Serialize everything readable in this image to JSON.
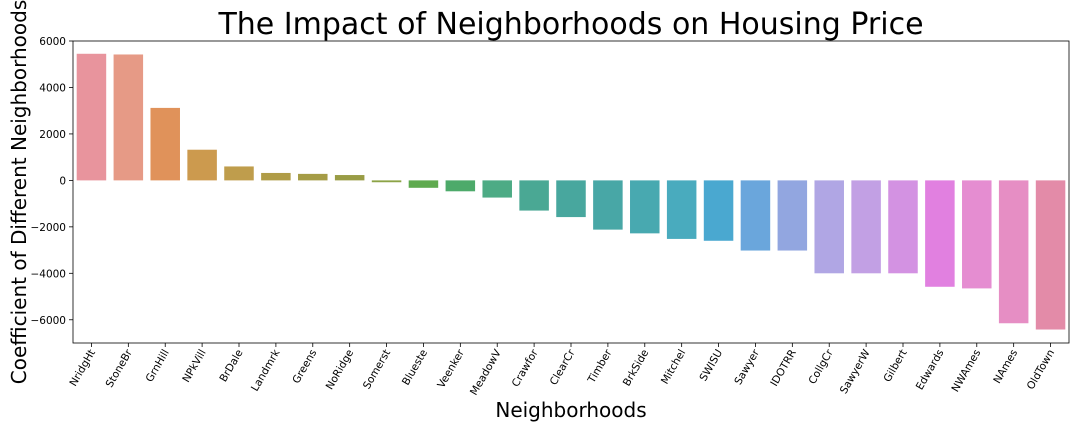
{
  "chart_data": {
    "type": "bar",
    "title": "The Impact of Neighborhoods on Housing Price",
    "xlabel": "Neighborhoods",
    "ylabel": "Coefficient of Different Neighborhoods",
    "ylim": [
      -7000,
      6000
    ],
    "yticks": [
      -6000,
      -4000,
      -2000,
      0,
      2000,
      4000,
      6000
    ],
    "ytick_labels": [
      "−6000",
      "−4000",
      "−2000",
      "0",
      "2000",
      "4000",
      "6000"
    ],
    "grid": false,
    "categories": [
      "NridgHt",
      "StoneBr",
      "GrnHill",
      "NPkVill",
      "BrDale",
      "Landmrk",
      "Greens",
      "NoRidge",
      "Somerst",
      "Blueste",
      "Veenker",
      "MeadowV",
      "Crawfor",
      "ClearCr",
      "Timber",
      "BrkSide",
      "Mitchel",
      "SWISU",
      "Sawyer",
      "IDOTRR",
      "CollgCr",
      "SawyerW",
      "Gilbert",
      "Edwards",
      "NWAmes",
      "NAmes",
      "OldTown"
    ],
    "values": [
      5450,
      5420,
      3120,
      1320,
      600,
      320,
      280,
      230,
      -80,
      -320,
      -470,
      -740,
      -1300,
      -1580,
      -2120,
      -2280,
      -2520,
      -2600,
      -3020,
      -3020,
      -4000,
      -4000,
      -4000,
      -4580,
      -4650,
      -6150,
      -6420
    ],
    "colors": [
      "#e8949d",
      "#e69a86",
      "#e0925a",
      "#cc9a4e",
      "#bf9d4c",
      "#b09c47",
      "#a59c46",
      "#999c45",
      "#8ca346",
      "#5faa4f",
      "#4daa6a",
      "#4dab85",
      "#4aa894",
      "#48a79e",
      "#48a7a6",
      "#48a9b0",
      "#49abbe",
      "#4aa8d0",
      "#6aa6dc",
      "#92a6e0",
      "#b0a6e4",
      "#c2a0e4",
      "#d392e2",
      "#e180e0",
      "#e58dd1",
      "#e68ec4",
      "#e38ba8"
    ]
  }
}
